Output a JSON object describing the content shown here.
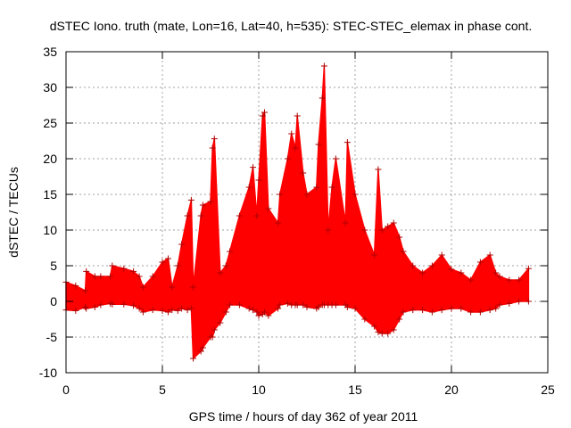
{
  "chart_data": {
    "type": "line",
    "title": "dSTEC Iono. truth (mate, Lon=16, Lat=40, h=535): STEC-STEC_elemax in phase cont.",
    "xlabel": "GPS time / hours of day 362 of year 2011",
    "ylabel": "dSTEC  / TECUs",
    "xlim": [
      0,
      25
    ],
    "ylim": [
      -10,
      35
    ],
    "x_ticks": [
      0,
      5,
      10,
      15,
      20,
      25
    ],
    "y_ticks": [
      -10,
      -5,
      0,
      5,
      10,
      15,
      20,
      25,
      30,
      35
    ],
    "grid": true,
    "marker": "plus",
    "color": "#ff0000",
    "series": [
      {
        "x": [
          0.0,
          0.5,
          1.0,
          1.05,
          1.5,
          1.8,
          2.3,
          2.4,
          3.0,
          3.5,
          3.8,
          4.0,
          4.5,
          5.0,
          5.3,
          5.5,
          5.8,
          6.0,
          6.3,
          6.5,
          6.6,
          7.0,
          7.1,
          7.5,
          7.6,
          7.7,
          8.0,
          8.3,
          8.5,
          9.0,
          9.5,
          9.7,
          9.9,
          10.0,
          10.2,
          10.3,
          10.5,
          11.0,
          11.1,
          11.5,
          11.7,
          11.9,
          12.0,
          12.3,
          12.5,
          13.0,
          13.1,
          13.3,
          13.4,
          13.6,
          13.8,
          14.0,
          14.5,
          14.6,
          15.0,
          15.5,
          16.0,
          16.2,
          16.4,
          16.7,
          17.0,
          17.3,
          17.5,
          18.0,
          18.5,
          19.0,
          19.5,
          20.0,
          20.5,
          21.0,
          21.5,
          22.0,
          22.3,
          22.5,
          23.0,
          23.5,
          24.0
        ],
        "top": [
          2.7,
          2.2,
          1.5,
          4.2,
          3.5,
          3.5,
          3.5,
          5.0,
          4.6,
          4.2,
          3.5,
          2.0,
          3.5,
          5.5,
          6.0,
          2.0,
          5.0,
          8.0,
          12.0,
          14.2,
          2.0,
          12.0,
          13.5,
          14.0,
          21.5,
          22.8,
          4.0,
          5.0,
          7.0,
          12.0,
          16.0,
          18.8,
          12.0,
          17.0,
          26.0,
          26.5,
          13.0,
          11.0,
          15.0,
          20.0,
          23.5,
          21.5,
          26.0,
          18.0,
          15.0,
          16.0,
          22.0,
          28.5,
          33.0,
          10.0,
          16.0,
          20.0,
          11.0,
          22.3,
          15.0,
          10.0,
          6.5,
          18.5,
          10.0,
          10.5,
          11.0,
          9.0,
          7.0,
          5.0,
          4.0,
          5.0,
          6.5,
          4.5,
          4.0,
          3.0,
          5.5,
          6.5,
          4.0,
          3.5,
          3.0,
          3.0,
          4.6
        ],
        "bottom": [
          -1.2,
          -1.3,
          -0.8,
          -1.0,
          -0.8,
          -0.5,
          -0.3,
          -0.4,
          -0.4,
          -0.6,
          -1.0,
          -1.5,
          -1.2,
          -1.3,
          -1.5,
          -1.2,
          -1.3,
          -1.0,
          -1.2,
          -1.0,
          -8.0,
          -7.0,
          -6.5,
          -5.0,
          -5.0,
          -4.0,
          -3.0,
          -1.5,
          -0.5,
          -0.5,
          -1.0,
          -1.2,
          -1.5,
          -2.0,
          -1.8,
          -1.5,
          -2.0,
          -1.0,
          -0.5,
          -0.3,
          -0.5,
          -0.5,
          -0.5,
          -0.5,
          -0.8,
          -1.0,
          -0.8,
          -0.5,
          -0.5,
          -0.5,
          -0.5,
          -0.5,
          -0.5,
          -0.8,
          -1.0,
          -2.5,
          -3.5,
          -4.3,
          -4.5,
          -4.5,
          -4.0,
          -2.5,
          -1.5,
          -1.2,
          -1.2,
          -1.5,
          -1.2,
          -1.0,
          -1.0,
          -1.5,
          -1.5,
          -1.2,
          -1.0,
          -0.5,
          -0.3,
          0.0,
          0.0
        ]
      }
    ]
  }
}
